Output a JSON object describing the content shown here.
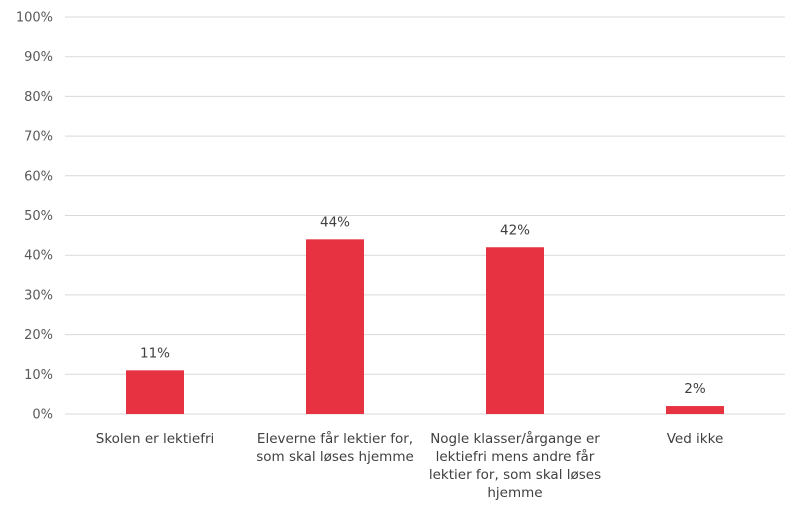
{
  "chart_data": {
    "type": "bar",
    "categories": [
      "Skolen er lektiefri",
      "Eleverne får lektier for, som skal løses hjemme",
      "Nogle klasser/årgange er lektiefri mens andre får lektier for, som skal løses hjemme",
      "Ved ikke"
    ],
    "category_lines": [
      [
        "Skolen er lektiefri"
      ],
      [
        "Eleverne får lektier for,",
        "som skal løses hjemme"
      ],
      [
        "Nogle klasser/årgange er",
        "lektiefri mens andre får",
        "lektier for, som skal løses",
        "hjemme"
      ],
      [
        "Ved ikke"
      ]
    ],
    "values": [
      11,
      44,
      42,
      2
    ],
    "value_labels": [
      "11%",
      "44%",
      "42%",
      "2%"
    ],
    "ylim": [
      0,
      100
    ],
    "yticks": [
      0,
      10,
      20,
      30,
      40,
      50,
      60,
      70,
      80,
      90,
      100
    ],
    "ytick_labels": [
      "0%",
      "10%",
      "20%",
      "30%",
      "40%",
      "50%",
      "60%",
      "70%",
      "80%",
      "90%",
      "100%"
    ],
    "grid": true,
    "legend": "none",
    "bar_color": "#e63241"
  }
}
